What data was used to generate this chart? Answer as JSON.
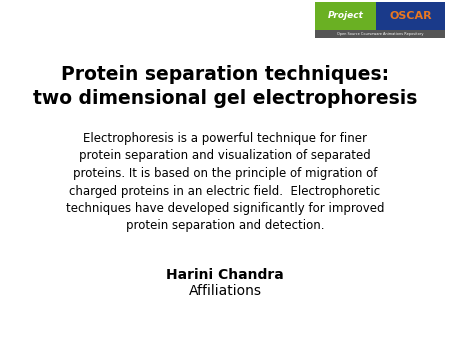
{
  "background_color": "#ffffff",
  "title_line1": "Protein separation techniques:",
  "title_line2": "two dimensional gel electrophoresis",
  "title_fontsize": 13.5,
  "title_fontweight": "bold",
  "title_color": "#000000",
  "body_lines": [
    "Electrophoresis is a powerful technique for finer",
    "protein separation and visualization of separated",
    "proteins. It is based on the principle of migration of",
    "charged proteins in an electric field.  Electrophoretic",
    "techniques have developed significantly for improved",
    "protein separation and detection."
  ],
  "body_fontsize": 8.5,
  "body_color": "#000000",
  "author_name": "Harini Chandra",
  "author_fontsize": 10,
  "author_fontweight": "bold",
  "affiliation": "Affiliations",
  "affiliation_fontsize": 10,
  "affiliation_fontweight": "normal",
  "logo_project_text": "Project",
  "logo_oscar_text": "OSCAR",
  "logo_subtitle": "Open Source Courseware Animations Repository",
  "logo_green": "#6ab023",
  "logo_blue": "#1a3a8a",
  "logo_orange": "#e87722"
}
